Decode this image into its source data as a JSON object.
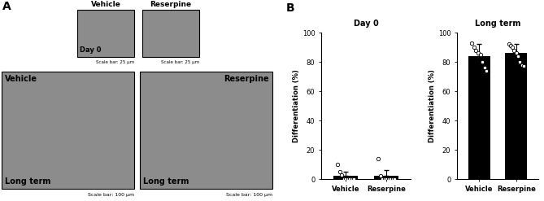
{
  "panel_A": {
    "label": "A",
    "columns": [
      "Vehicle",
      "Reserpine"
    ],
    "day0": {
      "label": "Day 0",
      "scale_bar": "Scale bar: 25 μm"
    },
    "long_term": {
      "label": "Long term",
      "scale_bar": "Scale bar: 100 μm"
    }
  },
  "panel_B_label": "B",
  "chart_data": [
    {
      "type": "bar",
      "title": "Day 0",
      "y_label": "Differentiation (%)",
      "categories": [
        "Vehicle",
        "Reserpine"
      ],
      "values": [
        2,
        2
      ],
      "error": [
        3,
        4
      ],
      "points": [
        [
          10,
          5,
          3,
          0,
          0,
          0,
          0,
          0,
          0
        ],
        [
          14,
          2,
          0,
          0,
          0,
          0,
          0,
          0,
          0
        ]
      ],
      "color": "#000000",
      "ylim": [
        0,
        100
      ],
      "yticks": [
        0,
        20,
        40,
        60,
        80,
        100
      ]
    },
    {
      "type": "bar",
      "title": "Long term",
      "y_label": "Differentiation (%)",
      "categories": [
        "Vehicle",
        "Reserpine"
      ],
      "values": [
        84,
        86
      ],
      "error": [
        8,
        6
      ],
      "points": [
        [
          93,
          90,
          88,
          86,
          85,
          80,
          76,
          74
        ],
        [
          92,
          91,
          90,
          88,
          86,
          84,
          80,
          78,
          77
        ]
      ],
      "color": "#000000",
      "ylim": [
        0,
        100
      ],
      "yticks": [
        0,
        20,
        40,
        60,
        80,
        100
      ]
    }
  ]
}
